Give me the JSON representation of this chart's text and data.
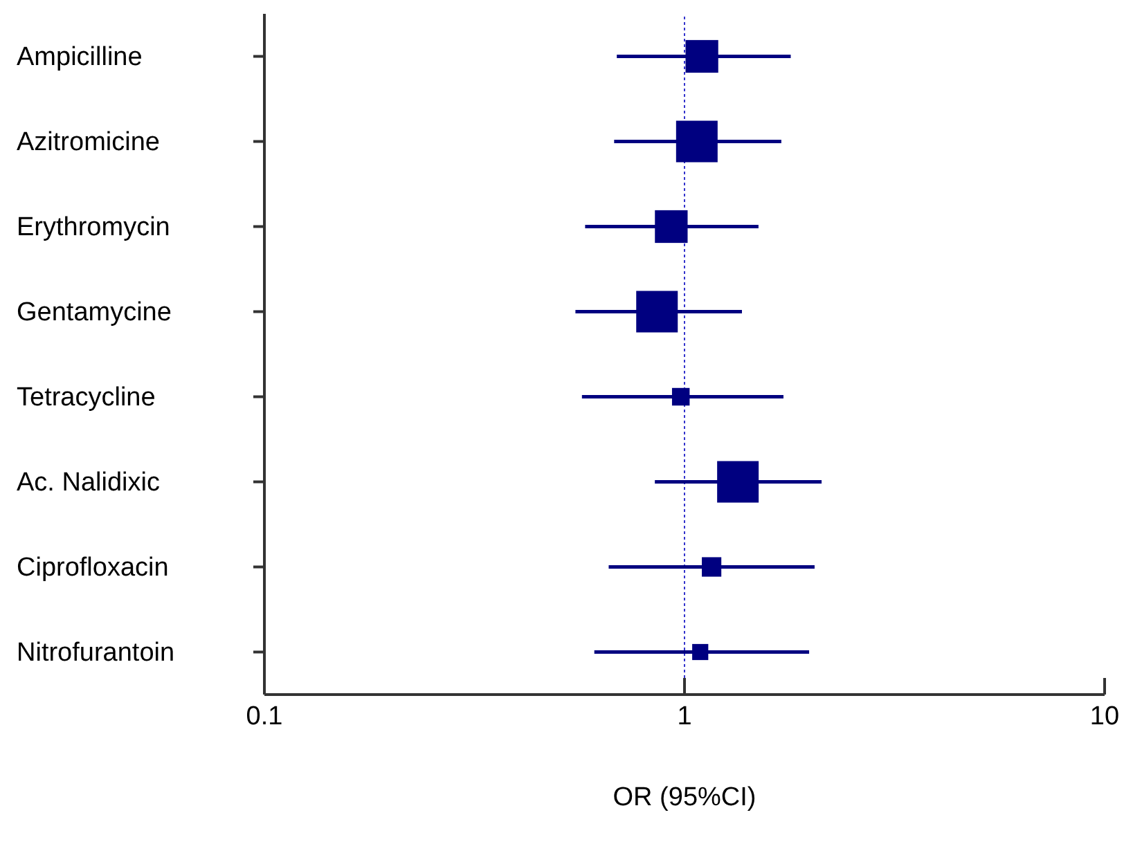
{
  "chart_data": {
    "type": "bubble",
    "xlabel": "OR (95%CI)",
    "orientation": "horizontal",
    "categories": [
      "Ampicilline",
      "Azitromicine",
      "Erythromycin",
      "Gentamycine",
      "Tetracycline",
      "Ac. Nalidixic",
      "Ciprofloxacin",
      "Nitrofurantoin"
    ],
    "series": [
      {
        "color": "#000080",
        "values": [
          1.1,
          1.07,
          0.93,
          0.86,
          0.98,
          1.34,
          1.16,
          1.09
        ],
        "sizes": [
          0.62,
          1,
          0.62,
          1,
          0.18,
          1,
          0.22,
          0.15
        ],
        "errors": [
          [
            0.69,
            1.79
          ],
          [
            0.68,
            1.7
          ],
          [
            0.58,
            1.5
          ],
          [
            0.55,
            1.37
          ],
          [
            0.57,
            1.72
          ],
          [
            0.85,
            2.12
          ],
          [
            0.66,
            2.04
          ],
          [
            0.61,
            1.98
          ]
        ]
      }
    ],
    "log": "x",
    "xlim": [
      0.1,
      10
    ],
    "xticks": [
      0.1,
      1,
      10
    ],
    "marker": "square",
    "grid": false,
    "legend": false,
    "ref_lines": [
      {
        "axis": "x",
        "value": 1,
        "color": "#3333cc",
        "line_style": "dotted"
      }
    ]
  }
}
